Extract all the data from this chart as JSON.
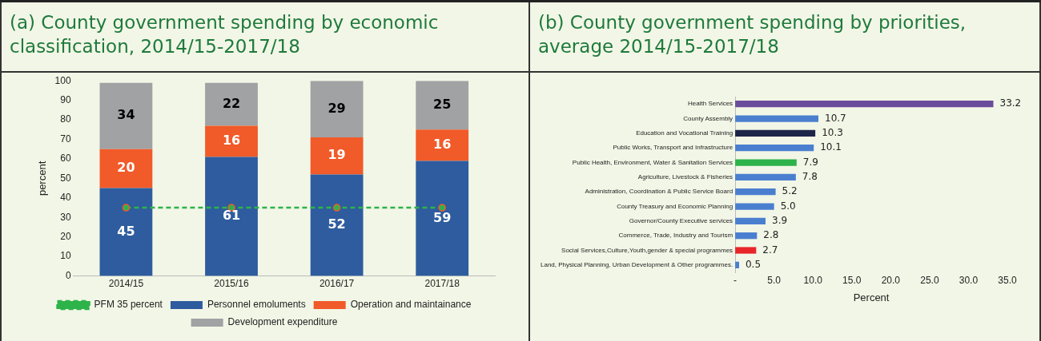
{
  "chart_data": [
    {
      "type": "bar",
      "title": "(a) County government spending by economic classification, 2014/15-2017/18",
      "ylabel": "percent",
      "stacked": true,
      "categories": [
        "2014/15",
        "2015/16",
        "2016/17",
        "2017/18"
      ],
      "series": [
        {
          "name": "Personnel emoluments",
          "color": "#2e5c9e",
          "values": [
            45,
            61,
            52,
            59
          ],
          "value_labels": [
            "45",
            "61",
            "52",
            "59"
          ]
        },
        {
          "name": "Operation and maintainance",
          "color": "#f15a29",
          "values": [
            20,
            16,
            19,
            16
          ],
          "value_labels": [
            "20",
            "16",
            "19",
            "16"
          ]
        },
        {
          "name": "Development expenditure",
          "color": "#a0a2a3",
          "values": [
            34,
            22,
            29,
            25
          ],
          "value_labels": [
            "34",
            "22",
            "29",
            "25"
          ]
        },
        {
          "name": "PFM 35 percent",
          "type": "line",
          "color": "#2db34a",
          "values": [
            35,
            35,
            35,
            35
          ],
          "line_style": "dashed",
          "marker": "circle"
        }
      ],
      "ylim": [
        0,
        100
      ],
      "yticks": [
        0,
        10,
        20,
        30,
        40,
        50,
        60,
        70,
        80,
        90,
        100
      ],
      "grid": false,
      "legend": "bottom"
    },
    {
      "type": "bar",
      "title": "(b) County government spending by priorities, average 2014/15-2017/18",
      "orientation": "horizontal",
      "xlabel": "Percent",
      "categories": [
        "Health Services",
        "County Assembly",
        "Education and Vocational Training",
        "Public Works, Transport and Infrastructure",
        "Public Health, Environment, Water & Sanitation Services",
        "Agriculture, Livestock & Fisheries",
        "Administration, Coordination & Public Service Board",
        "County Treasury and Economic Planning",
        "Governor/County Executive services",
        "Commerce, Trade, Industry and Tourism",
        "Social Services,Culture,Youth,gender & special programmes",
        "Land, Physical Planning, Urban Development & Other programmes."
      ],
      "values": [
        33.2,
        10.7,
        10.3,
        10.1,
        7.9,
        7.8,
        5.2,
        5.0,
        3.9,
        2.8,
        2.7,
        0.5
      ],
      "value_labels": [
        "33.2",
        "10.7",
        "10.3",
        "10.1",
        "7.9",
        "7.8",
        "5.2",
        "5.0",
        "3.9",
        "2.8",
        "2.7",
        "0.5"
      ],
      "colors": [
        "#6a4c9c",
        "#4a7fd0",
        "#1c2549",
        "#4a7fd0",
        "#2db34a",
        "#4a7fd0",
        "#4a7fd0",
        "#4a7fd0",
        "#4a7fd0",
        "#4a7fd0",
        "#e8262a",
        "#4a7fd0"
      ],
      "xlim": [
        0,
        35
      ],
      "xticks": [
        {
          "value": 0,
          "label": "-"
        },
        {
          "value": 5,
          "label": "5.0"
        },
        {
          "value": 10,
          "label": "10.0"
        },
        {
          "value": 15,
          "label": "15.0"
        },
        {
          "value": 20,
          "label": "20.0"
        },
        {
          "value": 25,
          "label": "25.0"
        },
        {
          "value": 30,
          "label": "30.0"
        },
        {
          "value": 35,
          "label": "35.0"
        }
      ],
      "grid": false,
      "legend": false
    }
  ]
}
